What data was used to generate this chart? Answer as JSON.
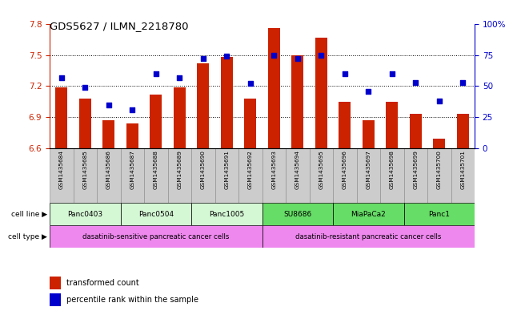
{
  "title": "GDS5627 / ILMN_2218780",
  "samples": [
    "GSM1435684",
    "GSM1435685",
    "GSM1435686",
    "GSM1435687",
    "GSM1435688",
    "GSM1435689",
    "GSM1435690",
    "GSM1435691",
    "GSM1435692",
    "GSM1435693",
    "GSM1435694",
    "GSM1435695",
    "GSM1435696",
    "GSM1435697",
    "GSM1435698",
    "GSM1435699",
    "GSM1435700",
    "GSM1435701"
  ],
  "bar_values": [
    7.19,
    7.08,
    6.87,
    6.84,
    7.12,
    7.19,
    7.42,
    7.48,
    7.08,
    7.76,
    7.5,
    7.67,
    7.05,
    6.87,
    7.05,
    6.93,
    6.69,
    6.93
  ],
  "dot_values": [
    57,
    49,
    35,
    31,
    60,
    57,
    72,
    74,
    52,
    75,
    72,
    75,
    60,
    46,
    60,
    53,
    38,
    53
  ],
  "ylim_left": [
    6.6,
    7.8
  ],
  "ylim_right": [
    0,
    100
  ],
  "yticks_left": [
    6.6,
    6.9,
    7.2,
    7.5,
    7.8
  ],
  "yticks_right": [
    0,
    25,
    50,
    75,
    100
  ],
  "ytick_labels_right": [
    "0",
    "25",
    "50",
    "75",
    "100%"
  ],
  "cell_lines": [
    {
      "label": "Panc0403",
      "start": 0,
      "end": 3,
      "color": "#d4f7d4"
    },
    {
      "label": "Panc0504",
      "start": 3,
      "end": 6,
      "color": "#d4f7d4"
    },
    {
      "label": "Panc1005",
      "start": 6,
      "end": 9,
      "color": "#d4f7d4"
    },
    {
      "label": "SU8686",
      "start": 9,
      "end": 12,
      "color": "#66dd66"
    },
    {
      "label": "MiaPaCa2",
      "start": 12,
      "end": 15,
      "color": "#66dd66"
    },
    {
      "label": "Panc1",
      "start": 15,
      "end": 18,
      "color": "#66dd66"
    }
  ],
  "cell_types": [
    {
      "label": "dasatinib-sensitive pancreatic cancer cells",
      "start": 0,
      "end": 9,
      "color": "#ee88ee"
    },
    {
      "label": "dasatinib-resistant pancreatic cancer cells",
      "start": 9,
      "end": 18,
      "color": "#ee88ee"
    }
  ],
  "bar_color": "#cc2200",
  "dot_color": "#0000cc",
  "axis_color_left": "#cc2200",
  "axis_color_right": "#0000cc",
  "background_color": "#ffffff",
  "legend_items": [
    {
      "label": "transformed count",
      "color": "#cc2200"
    },
    {
      "label": "percentile rank within the sample",
      "color": "#0000cc"
    }
  ]
}
